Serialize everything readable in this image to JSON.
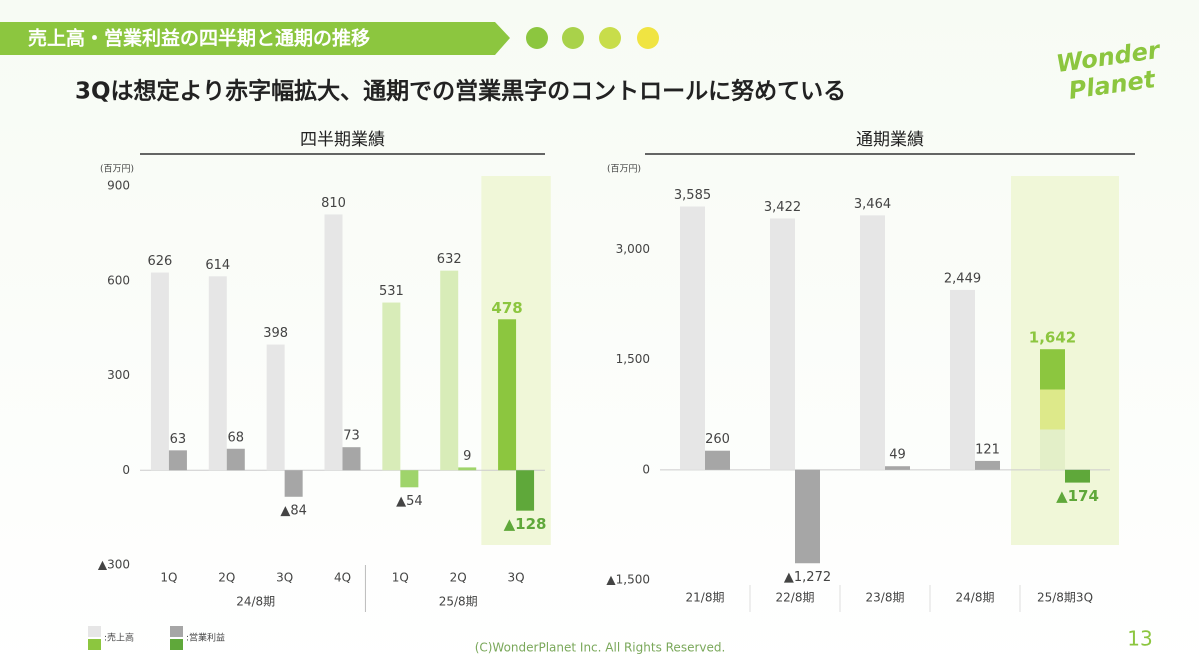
{
  "header": {
    "title": "売上高・営業利益の四半期と通期の推移",
    "subtitle": "3Qは想定より赤字幅拡大、通期での営業黒字のコントロールに努めている",
    "logo": [
      "Wonder",
      "Planet"
    ]
  },
  "chart_data": [
    {
      "type": "bar",
      "title": "四半期業績",
      "unit": "(百万円)",
      "groups": [
        {
          "label": "24/8期",
          "categories": [
            "1Q",
            "2Q",
            "3Q",
            "4Q"
          ]
        },
        {
          "label": "25/8期",
          "categories": [
            "1Q",
            "2Q",
            "3Q"
          ]
        }
      ],
      "series": [
        {
          "name": ":売上高",
          "values": [
            626,
            614,
            398,
            810,
            531,
            632,
            478
          ],
          "value_labels": [
            "626",
            "614",
            "398",
            "810",
            "531",
            "632",
            "478"
          ],
          "colors": [
            "#e6e6e6",
            "#e6e6e6",
            "#e6e6e6",
            "#e6e6e6",
            "#d8ecb8",
            "#d8ecb8",
            "#8cc63f"
          ]
        },
        {
          "name": ":営業利益",
          "values": [
            63,
            68,
            -84,
            73,
            -54,
            9,
            -128
          ],
          "value_labels": [
            "63",
            "68",
            "▲84",
            "73",
            "▲54",
            "9",
            "▲128"
          ],
          "colors": [
            "#a6a6a6",
            "#a6a6a6",
            "#a6a6a6",
            "#a6a6a6",
            "#9fd46b",
            "#9fd46b",
            "#5fa83a"
          ]
        }
      ],
      "ylim": [
        -300,
        900
      ],
      "yticks": [
        900,
        600,
        300,
        0,
        {
          "value": -300,
          "label": "▲300"
        }
      ],
      "grid": false,
      "highlight_index": 6,
      "highlight_color": "#f0f7d8"
    },
    {
      "type": "bar",
      "title": "通期業績",
      "unit": "(百万円)",
      "categories": [
        "21/8期",
        "22/8期",
        "23/8期",
        "24/8期",
        "25/8期3Q"
      ],
      "series": [
        {
          "name": ":売上高",
          "values": [
            3585,
            3422,
            3464,
            2449,
            1642
          ],
          "value_labels": [
            "3,585",
            "3,422",
            "3,464",
            "2,449",
            "1,642"
          ],
          "colors": [
            "#e6e6e6",
            "#e6e6e6",
            "#e6e6e6",
            "#e6e6e6",
            "#8cc63f"
          ]
        },
        {
          "name": ":営業利益",
          "values": [
            260,
            -1272,
            49,
            121,
            -174
          ],
          "value_labels": [
            "260",
            "▲1,272",
            "49",
            "121",
            "▲174"
          ],
          "colors": [
            "#a6a6a6",
            "#a6a6a6",
            "#a6a6a6",
            "#a6a6a6",
            "#5fa83a"
          ]
        }
      ],
      "ylim": [
        -1500,
        4000
      ],
      "yticks": [
        {
          "value": 3000,
          "label": "3,000"
        },
        {
          "value": 1500,
          "label": "1,500"
        },
        0,
        {
          "value": -1500,
          "label": "▲1,500"
        }
      ],
      "grid": false,
      "highlight_index": 4,
      "highlight_color": "#f0f7d8",
      "highlight_bar_colors": [
        "#8cc63f",
        "#dde98a",
        "#e3efc8"
      ]
    }
  ],
  "footer": {
    "copyright": "(C)WonderPlanet Inc.  All Rights Reserved.",
    "page": "13"
  }
}
